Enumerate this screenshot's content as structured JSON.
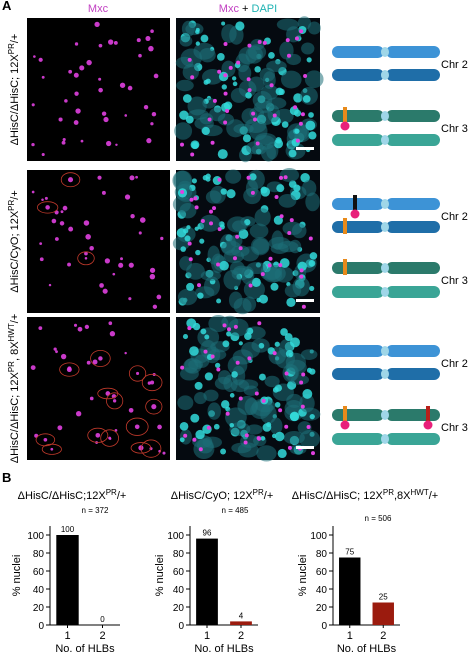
{
  "panel_a": {
    "label": "A",
    "columns": {
      "mxc": "Mxc",
      "merge": [
        "Mxc",
        "+",
        "DAPI"
      ]
    },
    "rows": [
      {
        "genotype": [
          "ΔHisC/ΔHisC; 12X",
          "PR",
          "/+"
        ]
      },
      {
        "genotype": [
          "ΔHisC/CyO; 12X",
          "PR",
          "/+"
        ]
      },
      {
        "genotype": [
          "ΔHisC/ΔHisC; 12X",
          "PR",
          ", 8X",
          "HWT",
          "/+"
        ]
      }
    ],
    "chromosomes": [
      "Chr 2",
      "Chr 3"
    ]
  },
  "panel_b": {
    "label": "B"
  },
  "chart_data": [
    {
      "type": "bar",
      "title": [
        "ΔHisC/ΔHisC;12X",
        "PR",
        "/+"
      ],
      "annotation": "n = 372",
      "y_label": "% nuclei",
      "x_label": "No. of HLBs",
      "categories": [
        "1",
        "2"
      ],
      "values": [
        100,
        0
      ],
      "colors": [
        "#000000",
        "#9b1b0e"
      ],
      "ylim": [
        0,
        110
      ],
      "yticks": [
        0,
        20,
        40,
        60,
        80,
        100
      ]
    },
    {
      "type": "bar",
      "title": [
        "ΔHisC/CyO; 12X",
        "PR",
        "/+"
      ],
      "annotation": "n = 485",
      "y_label": "% nuclei",
      "x_label": "No. of HLBs",
      "categories": [
        "1",
        "2"
      ],
      "values": [
        96,
        4
      ],
      "colors": [
        "#000000",
        "#9b1b0e"
      ],
      "ylim": [
        0,
        110
      ],
      "yticks": [
        0,
        20,
        40,
        60,
        80,
        100
      ]
    },
    {
      "type": "bar",
      "title": [
        "ΔHisC/ΔHisC; 12X",
        "PR",
        ",8X",
        "HWT",
        "/+"
      ],
      "annotation": "n = 506",
      "y_label": "% nuclei",
      "x_label": "No. of HLBs",
      "categories": [
        "1",
        "2"
      ],
      "values": [
        75,
        25
      ],
      "colors": [
        "#000000",
        "#9b1b0e"
      ],
      "ylim": [
        0,
        110
      ],
      "yticks": [
        0,
        20,
        40,
        60,
        80,
        100
      ]
    }
  ]
}
